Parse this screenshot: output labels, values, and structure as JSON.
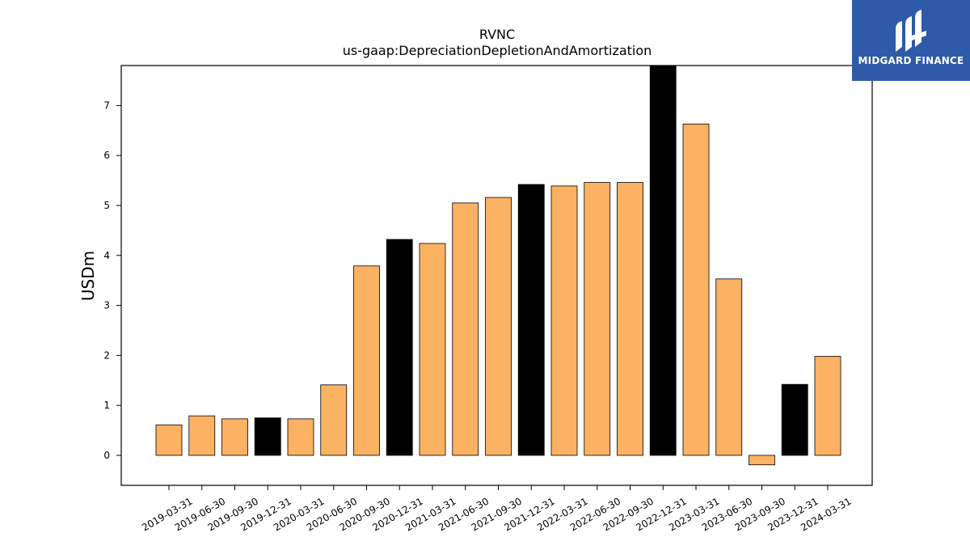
{
  "chart_data": {
    "type": "bar",
    "title": "RVNC",
    "subtitle": "us-gaap:DepreciationDepletionAndAmortization",
    "xlabel": "",
    "ylabel": "USDm",
    "ylim": [
      -0.6,
      7.8
    ],
    "yticks": [
      0,
      1,
      2,
      3,
      4,
      5,
      6,
      7
    ],
    "categories": [
      "2019-03-31",
      "2019-06-30",
      "2019-09-30",
      "2019-12-31",
      "2020-03-31",
      "2020-06-30",
      "2020-09-30",
      "2020-12-31",
      "2021-03-31",
      "2021-06-30",
      "2021-09-30",
      "2021-12-31",
      "2022-03-31",
      "2022-06-30",
      "2022-09-30",
      "2022-12-31",
      "2023-03-31",
      "2023-06-30",
      "2023-09-30",
      "2023-12-31",
      "2024-03-31"
    ],
    "values": [
      0.61,
      0.79,
      0.73,
      0.75,
      0.73,
      1.41,
      3.79,
      4.32,
      4.24,
      5.05,
      5.16,
      5.42,
      5.39,
      5.46,
      5.46,
      7.85,
      6.63,
      3.53,
      -0.19,
      1.42,
      1.98
    ],
    "bar_colors": [
      "#fbb263",
      "#fbb263",
      "#fbb263",
      "#000000",
      "#fbb263",
      "#fbb263",
      "#fbb263",
      "#000000",
      "#fbb263",
      "#fbb263",
      "#fbb263",
      "#000000",
      "#fbb263",
      "#fbb263",
      "#fbb263",
      "#000000",
      "#fbb263",
      "#fbb263",
      "#fbb263",
      "#000000",
      "#fbb263"
    ],
    "grid": false,
    "legend": "none"
  },
  "logo": {
    "text": "MIDGARD FINANCE",
    "background": "#2e5aa8",
    "icon": "midgard-logo-icon"
  }
}
